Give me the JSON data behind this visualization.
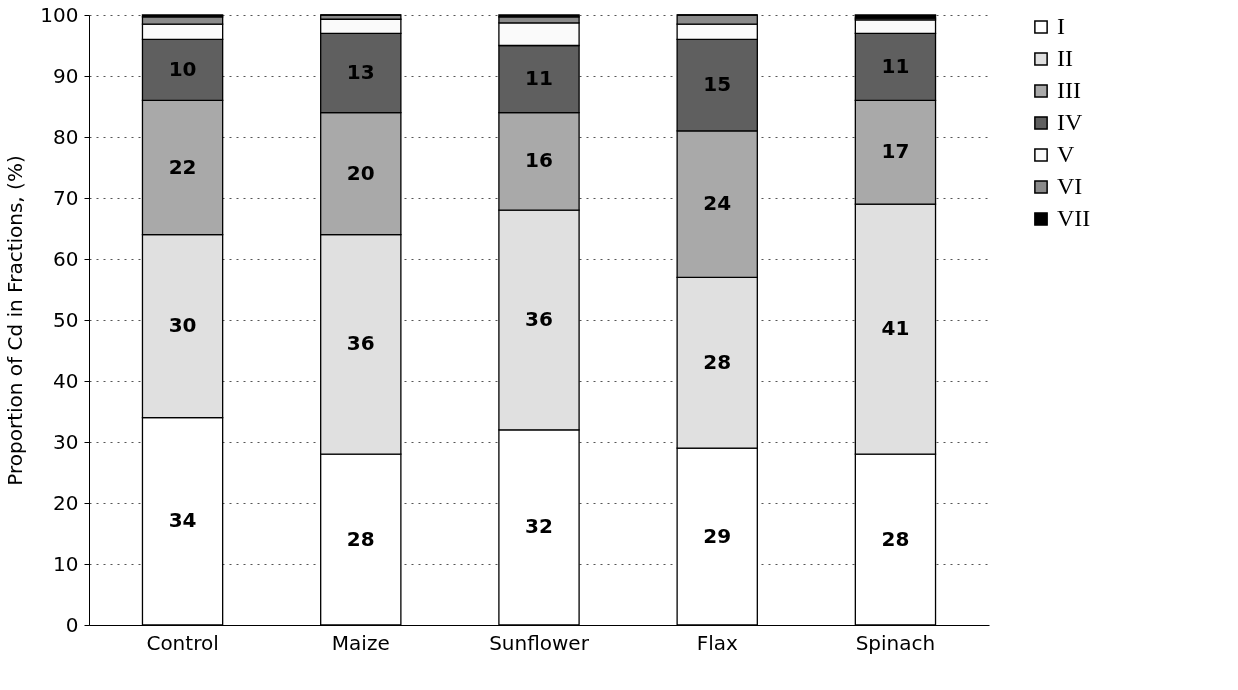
{
  "chart_data": {
    "type": "bar",
    "stacked": true,
    "ylabel": "Proportion of Cd in Fractions, (%)",
    "categories": [
      "Control",
      "Maize",
      "Sunflower",
      "Flax",
      "Spinach"
    ],
    "series": [
      {
        "name": "I",
        "color": "#ffffff",
        "values": [
          34,
          28,
          32,
          29,
          28
        ],
        "value_labels": [
          "34",
          "28",
          "32",
          "29",
          "28"
        ]
      },
      {
        "name": "II",
        "color": "#e0e0e0",
        "values": [
          30,
          36,
          36,
          28,
          41
        ],
        "value_labels": [
          "30",
          "36",
          "36",
          "28",
          "41"
        ]
      },
      {
        "name": "III",
        "color": "#a9a9a9",
        "values": [
          22,
          20,
          16,
          24,
          17
        ],
        "value_labels": [
          "22",
          "20",
          "16",
          "24",
          "17"
        ]
      },
      {
        "name": "IV",
        "color": "#5f5f5f",
        "values": [
          10,
          13,
          11,
          15,
          11
        ],
        "value_labels": [
          "10",
          "13",
          "11",
          "15",
          "11"
        ]
      },
      {
        "name": "V",
        "color": "#fafafa",
        "values": [
          2.5,
          2.3,
          3.7,
          2.5,
          2.2
        ]
      },
      {
        "name": "VI",
        "color": "#8a8a8a",
        "values": [
          1.2,
          0.7,
          1.0,
          1.5,
          0.3
        ]
      },
      {
        "name": "VII",
        "color": "#000000",
        "values": [
          0.3,
          0,
          0.3,
          0,
          0.5
        ]
      }
    ],
    "ylim": [
      0,
      100
    ],
    "yticks": [
      0,
      10,
      20,
      30,
      40,
      50,
      60,
      70,
      80,
      90,
      100
    ],
    "grid": "y",
    "legend": "right"
  }
}
